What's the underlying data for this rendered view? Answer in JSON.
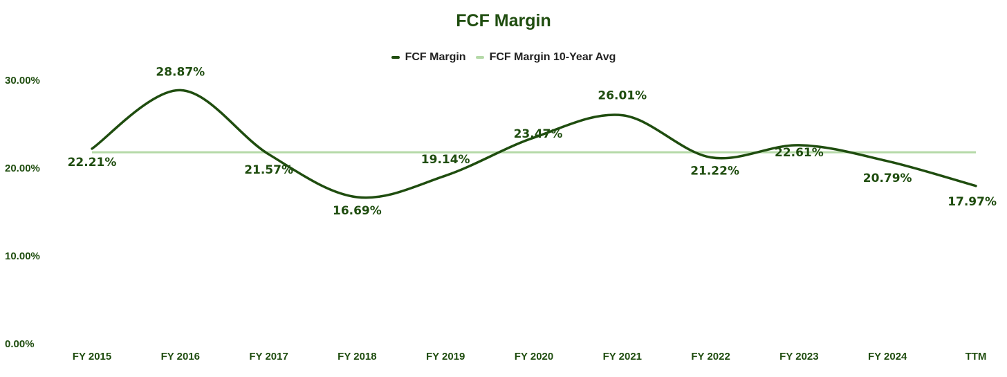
{
  "chart_data": {
    "type": "line",
    "title": "FCF Margin",
    "xlabel": "",
    "ylabel": "",
    "ylim": [
      0,
      30
    ],
    "yticks": [
      "0.00%",
      "10.00%",
      "20.00%",
      "30.00%"
    ],
    "ytick_values": [
      0,
      10,
      20,
      30
    ],
    "categories": [
      "FY 2015",
      "FY 2016",
      "FY 2017",
      "FY 2018",
      "FY 2019",
      "FY 2020",
      "FY 2021",
      "FY 2022",
      "FY 2023",
      "FY 2024",
      "TTM"
    ],
    "series": [
      {
        "name": "FCF Margin",
        "values": [
          22.21,
          28.87,
          21.57,
          16.69,
          19.14,
          23.47,
          26.01,
          21.22,
          22.61,
          20.79,
          17.97
        ],
        "labels": [
          "22.21%",
          "28.87%",
          "21.57%",
          "16.69%",
          "19.14%",
          "23.47%",
          "26.01%",
          "21.22%",
          "22.61%",
          "20.79%",
          "17.97%"
        ],
        "color": "#1f4d0f"
      },
      {
        "name": "FCF Margin 10-Year Avg",
        "values": [
          21.8,
          21.8,
          21.8,
          21.8,
          21.8,
          21.8,
          21.8,
          21.8,
          21.8,
          21.8,
          21.8
        ],
        "color": "#b5d9a8"
      }
    ],
    "legend_position": "top-center",
    "grid": false,
    "text_color": "#1f4d0f"
  }
}
